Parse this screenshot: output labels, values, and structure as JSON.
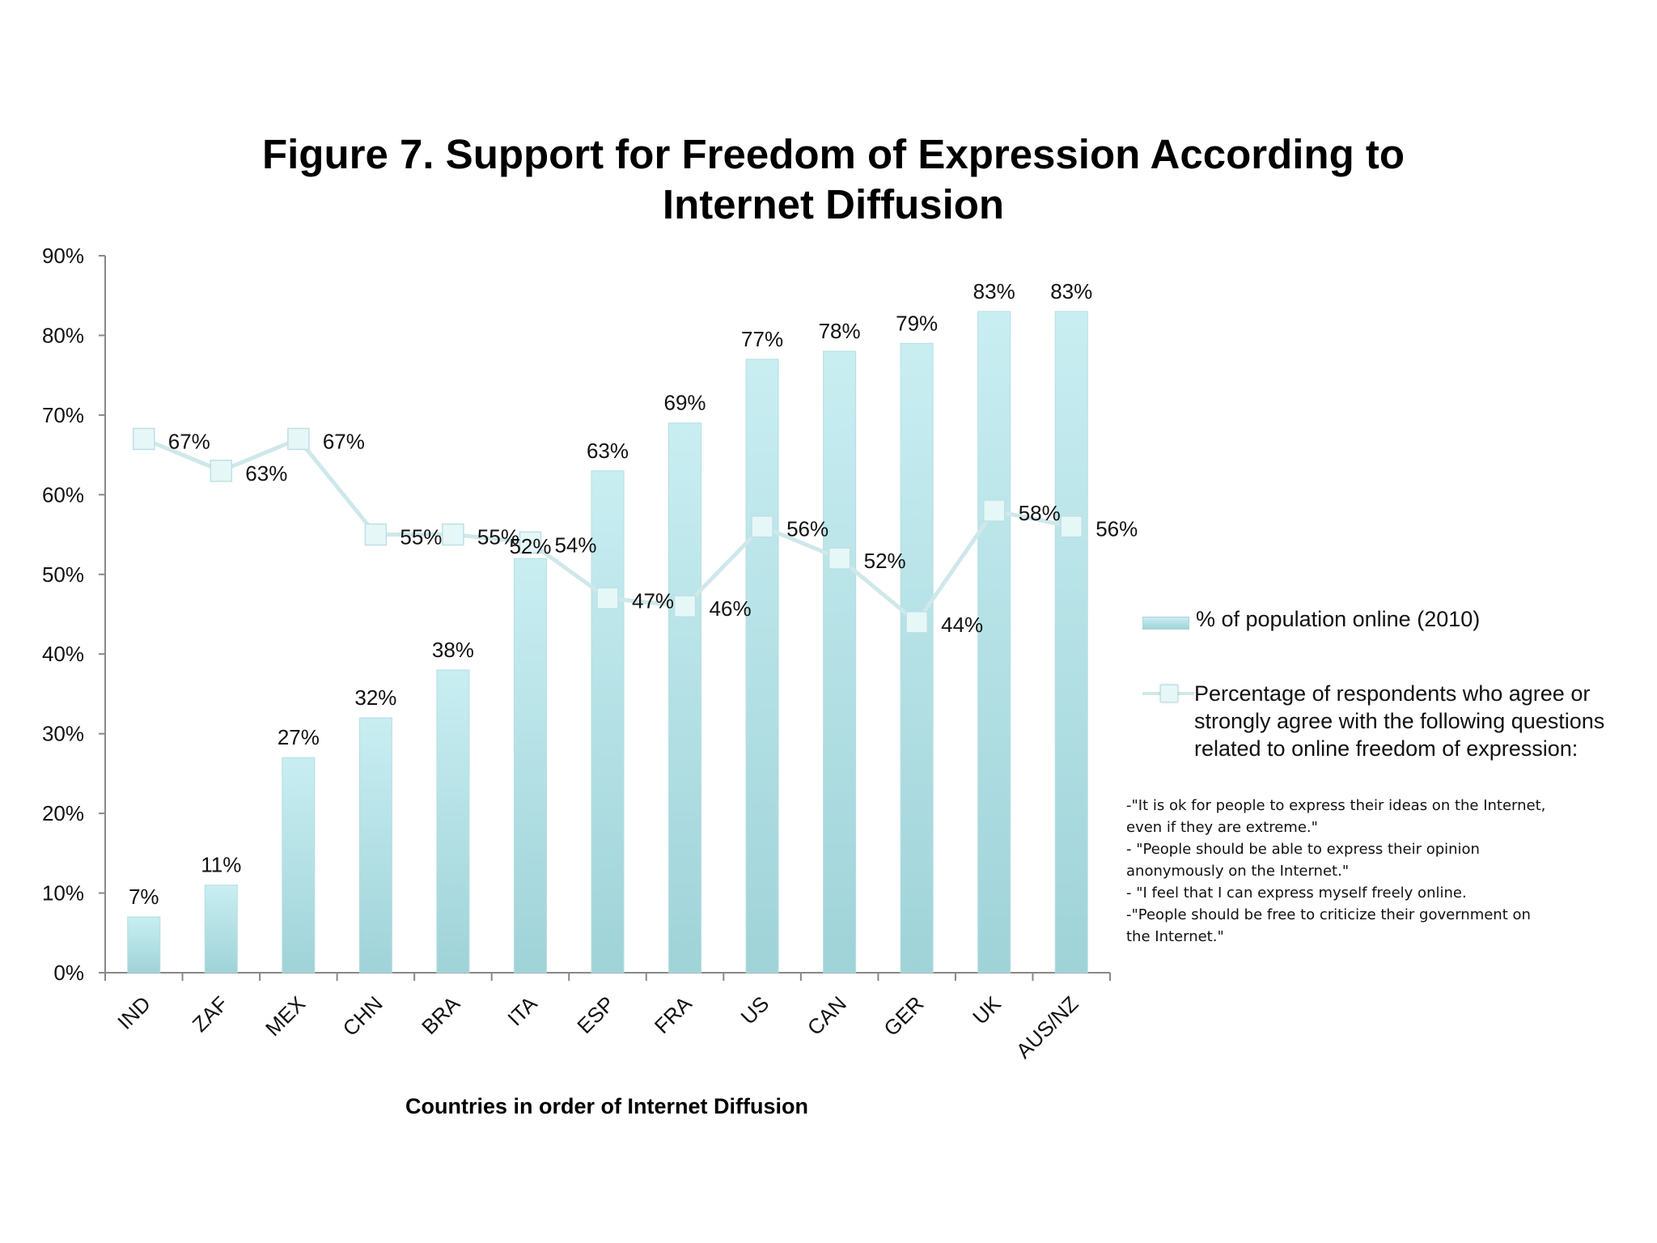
{
  "chart_data": {
    "type": "bar",
    "title": "Figure 7. Support for Freedom of Expression According to Internet Diffusion",
    "title_lines": [
      "Figure 7. Support for Freedom of Expression According to",
      "Internet Diffusion"
    ],
    "xlabel": "Countries in order of Internet Diffusion",
    "ylabel": "",
    "ylim": [
      0,
      90
    ],
    "yticks": [
      "0%",
      "10%",
      "20%",
      "30%",
      "40%",
      "50%",
      "60%",
      "70%",
      "80%",
      "90%"
    ],
    "categories": [
      "IND",
      "ZAF",
      "MEX",
      "CHN",
      "BRA",
      "ITA",
      "ESP",
      "FRA",
      "US",
      "CAN",
      "GER",
      "UK",
      "AUS/NZ"
    ],
    "series": [
      {
        "name": "% of population online (2010)",
        "kind": "bar",
        "values": [
          7,
          11,
          27,
          32,
          38,
          52,
          63,
          69,
          77,
          78,
          79,
          83,
          83
        ],
        "labels": [
          "7%",
          "11%",
          "27%",
          "32%",
          "38%",
          "",
          "63%",
          "69%",
          "77%",
          "78%",
          "79%",
          "83%",
          "83%"
        ]
      },
      {
        "name": "Percentage of respondents who agree or strongly agree with  the following questions related to online freedom of expression:",
        "kind": "line",
        "values": [
          67,
          63,
          67,
          55,
          55,
          54,
          47,
          46,
          56,
          52,
          44,
          58,
          56
        ],
        "labels": [
          "67%",
          "63%",
          "67%",
          "55%",
          "55%",
          "54%",
          "47%",
          "46%",
          "56%",
          "52%",
          "44%",
          "58%",
          "56%"
        ]
      }
    ],
    "extra_labels": [
      {
        "text": "52%",
        "near_category": "ITA"
      }
    ],
    "legend_position": "right",
    "grid": false,
    "colors": {
      "bar_top": "#c9eef2",
      "bar_bottom": "#9fd3d8",
      "line": "#cfe8ea",
      "marker": "#e6f7f8"
    }
  },
  "legend": {
    "bar_label": "% of population online (2010)",
    "line_label_lines": [
      "Percentage of respondents who agree or",
      "strongly agree with  the following questions",
      "related to online freedom of expression:"
    ]
  },
  "notes": [
    "-\"It is ok for people to express their ideas on the Internet,",
    "even if they are extreme.\"",
    "- \"People should be able to express their opinion",
    "anonymously on the Internet.\"",
    "- \"I feel that I can express myself freely online.",
    "-\"People should be free to criticize their government on",
    "the Internet.\""
  ]
}
